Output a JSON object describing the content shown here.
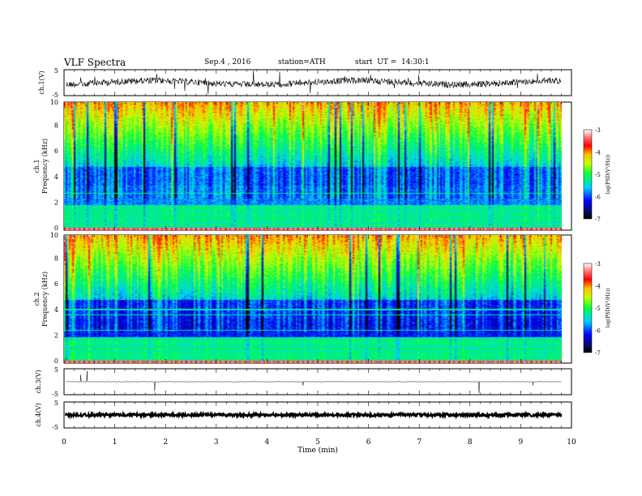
{
  "header": {
    "title": "VLF Spectra",
    "date": "Sep.4 , 2016",
    "station": "station=ATH",
    "start": "start  UT =  14:30:1"
  },
  "chart_data": [
    {
      "type": "line",
      "name": "ch1-waveform",
      "ylabel": "ch.1(V)",
      "ylim": [
        -5,
        5
      ],
      "yticks": [
        "5",
        "-5"
      ],
      "xlim": [
        0,
        10
      ],
      "level": 0,
      "noise": "high"
    },
    {
      "type": "heatmap",
      "name": "ch1-spectrogram",
      "ylabel": "ch.1",
      "ylabel2": "Frequency (kHz)",
      "ylim": [
        0,
        10
      ],
      "yticks": [
        "0",
        "2",
        "4",
        "6",
        "8",
        "10"
      ],
      "xlim": [
        0,
        9.8
      ],
      "colorbar": {
        "label": "log(PSD(V²/Hz))",
        "range": [
          -7,
          -3
        ],
        "ticks": [
          "-3",
          "-4",
          "-5",
          "-6",
          "-7"
        ]
      }
    },
    {
      "type": "heatmap",
      "name": "ch2-spectrogram",
      "ylabel": "ch.2",
      "ylabel2": "Frequency (kHz)",
      "ylim": [
        0,
        10
      ],
      "yticks": [
        "0",
        "2",
        "4",
        "6",
        "8",
        "10"
      ],
      "xlim": [
        0,
        9.8
      ],
      "colorbar": {
        "label": "log(PSD(V²/Hz))",
        "range": [
          -7,
          -3
        ],
        "ticks": [
          "-3",
          "-4",
          "-5",
          "-6",
          "-7"
        ]
      }
    },
    {
      "type": "line",
      "name": "ch3-waveform",
      "ylabel": "ch.3(V)",
      "ylim": [
        -5,
        5
      ],
      "yticks": [
        "5",
        "-5"
      ],
      "xlim": [
        0,
        10
      ],
      "level": 0,
      "noise": "low"
    },
    {
      "type": "line",
      "name": "ch4-waveform",
      "ylabel": "ch.4(V)",
      "ylim": [
        -5,
        5
      ],
      "yticks": [
        "5",
        "-5"
      ],
      "xlim": [
        0,
        10
      ],
      "level": 0,
      "noise": "thick"
    }
  ],
  "xaxis": {
    "label": "Time  (min)",
    "ticks": [
      "0",
      "1",
      "2",
      "3",
      "4",
      "5",
      "6",
      "7",
      "8",
      "9",
      "10"
    ]
  }
}
